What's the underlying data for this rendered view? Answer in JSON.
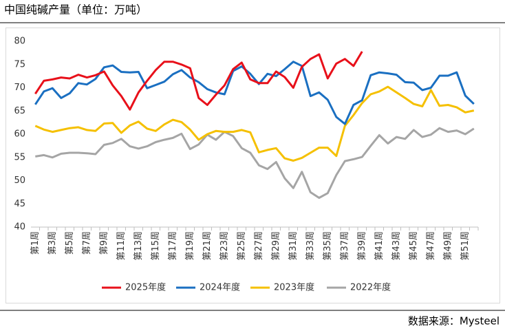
{
  "chart_data": {
    "type": "line",
    "title": "中国纯碱产量（单位：万吨）",
    "source": "数据来源：Mysteel",
    "categories": [
      "第1周",
      null,
      "第3周",
      null,
      "第5周",
      null,
      "第7周",
      null,
      "第9周",
      null,
      "第11周",
      null,
      "第13周",
      null,
      "第15周",
      null,
      "第17周",
      null,
      "第19周",
      null,
      "第21周",
      null,
      "第23周",
      null,
      "第25周",
      null,
      "第27周",
      null,
      "第29周",
      null,
      "第31周",
      null,
      "第33周",
      null,
      "第35周",
      null,
      "第37周",
      null,
      "第39周",
      null,
      "第41周",
      null,
      "第43周",
      null,
      "第45周",
      null,
      "第47周",
      null,
      "第49周",
      null,
      "第51周",
      null
    ],
    "ylim": [
      40,
      80
    ],
    "yticks": [
      40,
      45,
      50,
      55,
      60,
      65,
      70,
      75,
      80
    ],
    "grid": false,
    "legend": "bottom",
    "series": [
      {
        "name": "2025年度",
        "color": "#e8101a",
        "values": [
          68.7,
          71.5,
          71.8,
          72.2,
          72.0,
          72.8,
          72.2,
          72.7,
          73.5,
          70.5,
          68.2,
          65.3,
          69.0,
          71.5,
          73.8,
          75.6,
          75.6,
          75.0,
          74.2,
          67.8,
          66.3,
          68.5,
          70.5,
          74.0,
          75.4,
          71.8,
          71.0,
          71.0,
          73.5,
          72.3,
          70.0,
          74.5,
          76.2,
          77.2,
          72.0,
          75.2,
          76.2,
          74.7,
          77.8,
          null,
          null,
          null,
          null,
          null,
          null,
          null,
          null,
          null,
          null,
          null,
          null,
          null
        ]
      },
      {
        "name": "2024年度",
        "color": "#1a6fc1",
        "values": [
          66.4,
          69.2,
          69.9,
          67.8,
          68.8,
          71.0,
          70.7,
          71.9,
          74.4,
          74.8,
          73.4,
          73.3,
          73.4,
          69.9,
          70.6,
          71.3,
          72.9,
          73.8,
          72.2,
          71.2,
          69.7,
          69.0,
          68.6,
          73.6,
          74.6,
          73.0,
          70.8,
          73.0,
          72.5,
          74.0,
          75.6,
          74.7,
          68.2,
          69.0,
          67.4,
          63.7,
          62.2,
          66.3,
          67.3,
          72.7,
          73.3,
          73.1,
          72.8,
          71.2,
          71.1,
          69.5,
          70.0,
          72.6,
          72.6,
          73.3,
          68.3,
          66.5
        ]
      },
      {
        "name": "2023年度",
        "color": "#f5c000",
        "values": [
          61.8,
          61.0,
          60.5,
          60.9,
          61.3,
          61.5,
          60.9,
          60.7,
          62.3,
          62.4,
          60.3,
          61.9,
          62.7,
          61.2,
          60.7,
          62.1,
          63.1,
          62.6,
          61.0,
          58.8,
          60.0,
          60.7,
          60.5,
          60.5,
          60.9,
          60.4,
          56.1,
          56.6,
          57.0,
          54.8,
          54.3,
          54.9,
          56.0,
          57.1,
          57.1,
          55.3,
          61.8,
          64.1,
          66.7,
          68.6,
          69.2,
          70.2,
          69.0,
          67.8,
          66.5,
          66.0,
          69.5,
          66.1,
          66.3,
          65.8,
          64.7,
          65.1
        ]
      },
      {
        "name": "2022年度",
        "color": "#a5a5a5",
        "values": [
          55.2,
          55.5,
          55.0,
          55.8,
          56.0,
          56.0,
          55.9,
          55.7,
          57.7,
          58.1,
          59.0,
          57.4,
          56.9,
          57.4,
          58.3,
          58.8,
          59.2,
          60.1,
          56.8,
          57.8,
          59.9,
          58.8,
          60.5,
          59.6,
          57.0,
          56.0,
          53.3,
          52.5,
          54.0,
          50.5,
          48.4,
          51.9,
          47.5,
          46.3,
          47.3,
          51.2,
          54.2,
          54.6,
          55.1,
          57.5,
          59.8,
          58.0,
          59.4,
          59.0,
          60.9,
          59.4,
          59.9,
          61.3,
          60.5,
          60.8,
          60.0,
          61.2
        ]
      }
    ]
  }
}
